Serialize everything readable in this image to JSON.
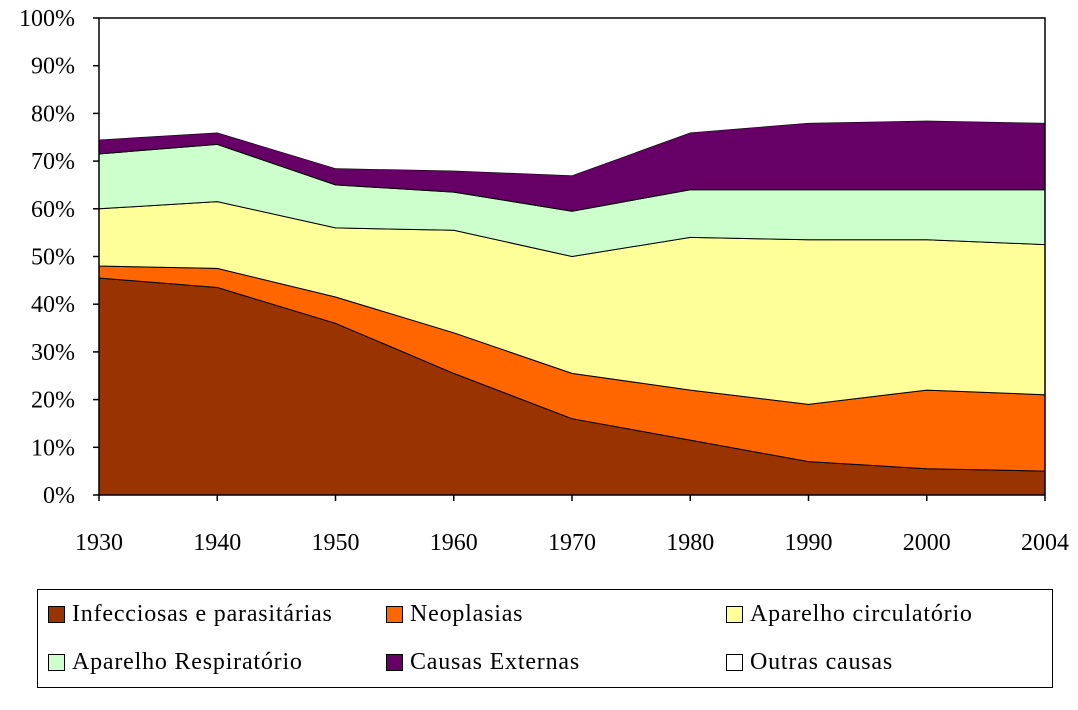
{
  "chart_data": {
    "type": "area",
    "stacked": true,
    "title": "",
    "xlabel": "",
    "ylabel": "",
    "x": [
      1930,
      1940,
      1950,
      1960,
      1970,
      1980,
      1990,
      2000,
      2004
    ],
    "x_tick_labels": [
      "1930",
      "1940",
      "1950",
      "1960",
      "1970",
      "1980",
      "1990",
      "2000",
      "2004"
    ],
    "y_tick_labels": [
      "0%",
      "10%",
      "20%",
      "30%",
      "40%",
      "50%",
      "60%",
      "70%",
      "80%",
      "90%",
      "100%"
    ],
    "ylim": [
      0,
      100
    ],
    "legend_position": "bottom",
    "series": [
      {
        "name": "Infecciosas e parasitárias",
        "color": "#993300",
        "values": [
          45.5,
          43.5,
          36,
          25.5,
          16,
          11.5,
          7,
          5.5,
          5
        ]
      },
      {
        "name": "Neoplasias",
        "color": "#FF6600",
        "values": [
          2.5,
          4,
          5.5,
          8.5,
          9.5,
          10.5,
          12,
          16.5,
          16
        ]
      },
      {
        "name": "Aparelho circulatório",
        "color": "#FFFF99",
        "values": [
          12,
          14,
          14.5,
          21.5,
          24.5,
          32,
          34.5,
          31.5,
          31.5
        ]
      },
      {
        "name": "Aparelho Respiratório",
        "color": "#CCFFCC",
        "values": [
          11.5,
          12,
          9,
          8,
          9.5,
          10,
          10.5,
          10.5,
          11.5
        ]
      },
      {
        "name": "Causas Externas",
        "color": "#660066",
        "values": [
          3,
          2.5,
          3.5,
          4.5,
          7.5,
          12,
          14,
          14.5,
          14
        ]
      },
      {
        "name": "Outras causas",
        "color": "#FFFFFF",
        "values": [
          25.5,
          24,
          31.5,
          32,
          33,
          24,
          22,
          21.5,
          22
        ]
      }
    ]
  }
}
